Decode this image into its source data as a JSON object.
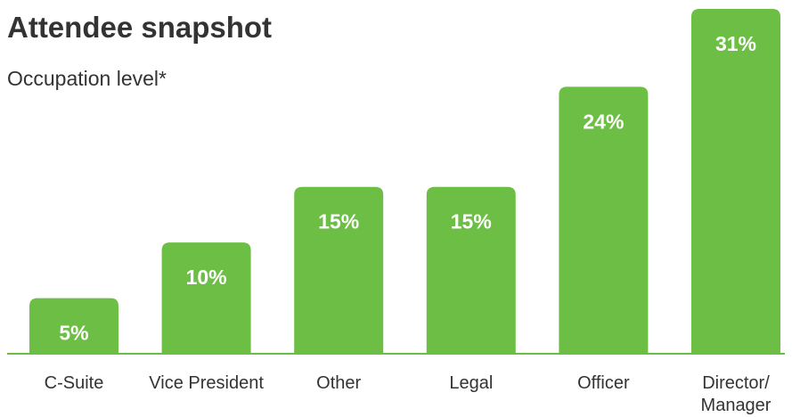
{
  "header": {
    "title": "Attendee snapshot",
    "subtitle": "Occupation level*"
  },
  "colors": {
    "bar": "#6dbe45",
    "axis": "#6dbe45",
    "bar_label": "#ffffff",
    "text": "#333333"
  },
  "chart_data": {
    "type": "bar",
    "title": "Attendee snapshot",
    "subtitle": "Occupation level*",
    "categories": [
      "C-Suite",
      "Vice President",
      "Other",
      "Legal",
      "Officer",
      "Director/ Manager"
    ],
    "category_lines": [
      [
        "C-Suite"
      ],
      [
        "Vice President"
      ],
      [
        "Other"
      ],
      [
        "Legal"
      ],
      [
        "Officer"
      ],
      [
        "Director/",
        "Manager"
      ]
    ],
    "values": [
      5,
      10,
      15,
      15,
      24,
      31
    ],
    "value_labels": [
      "5%",
      "10%",
      "15%",
      "15%",
      "24%",
      "31%"
    ],
    "unit": "%",
    "ylim": [
      0,
      31
    ],
    "grid": false,
    "legend": "none"
  }
}
